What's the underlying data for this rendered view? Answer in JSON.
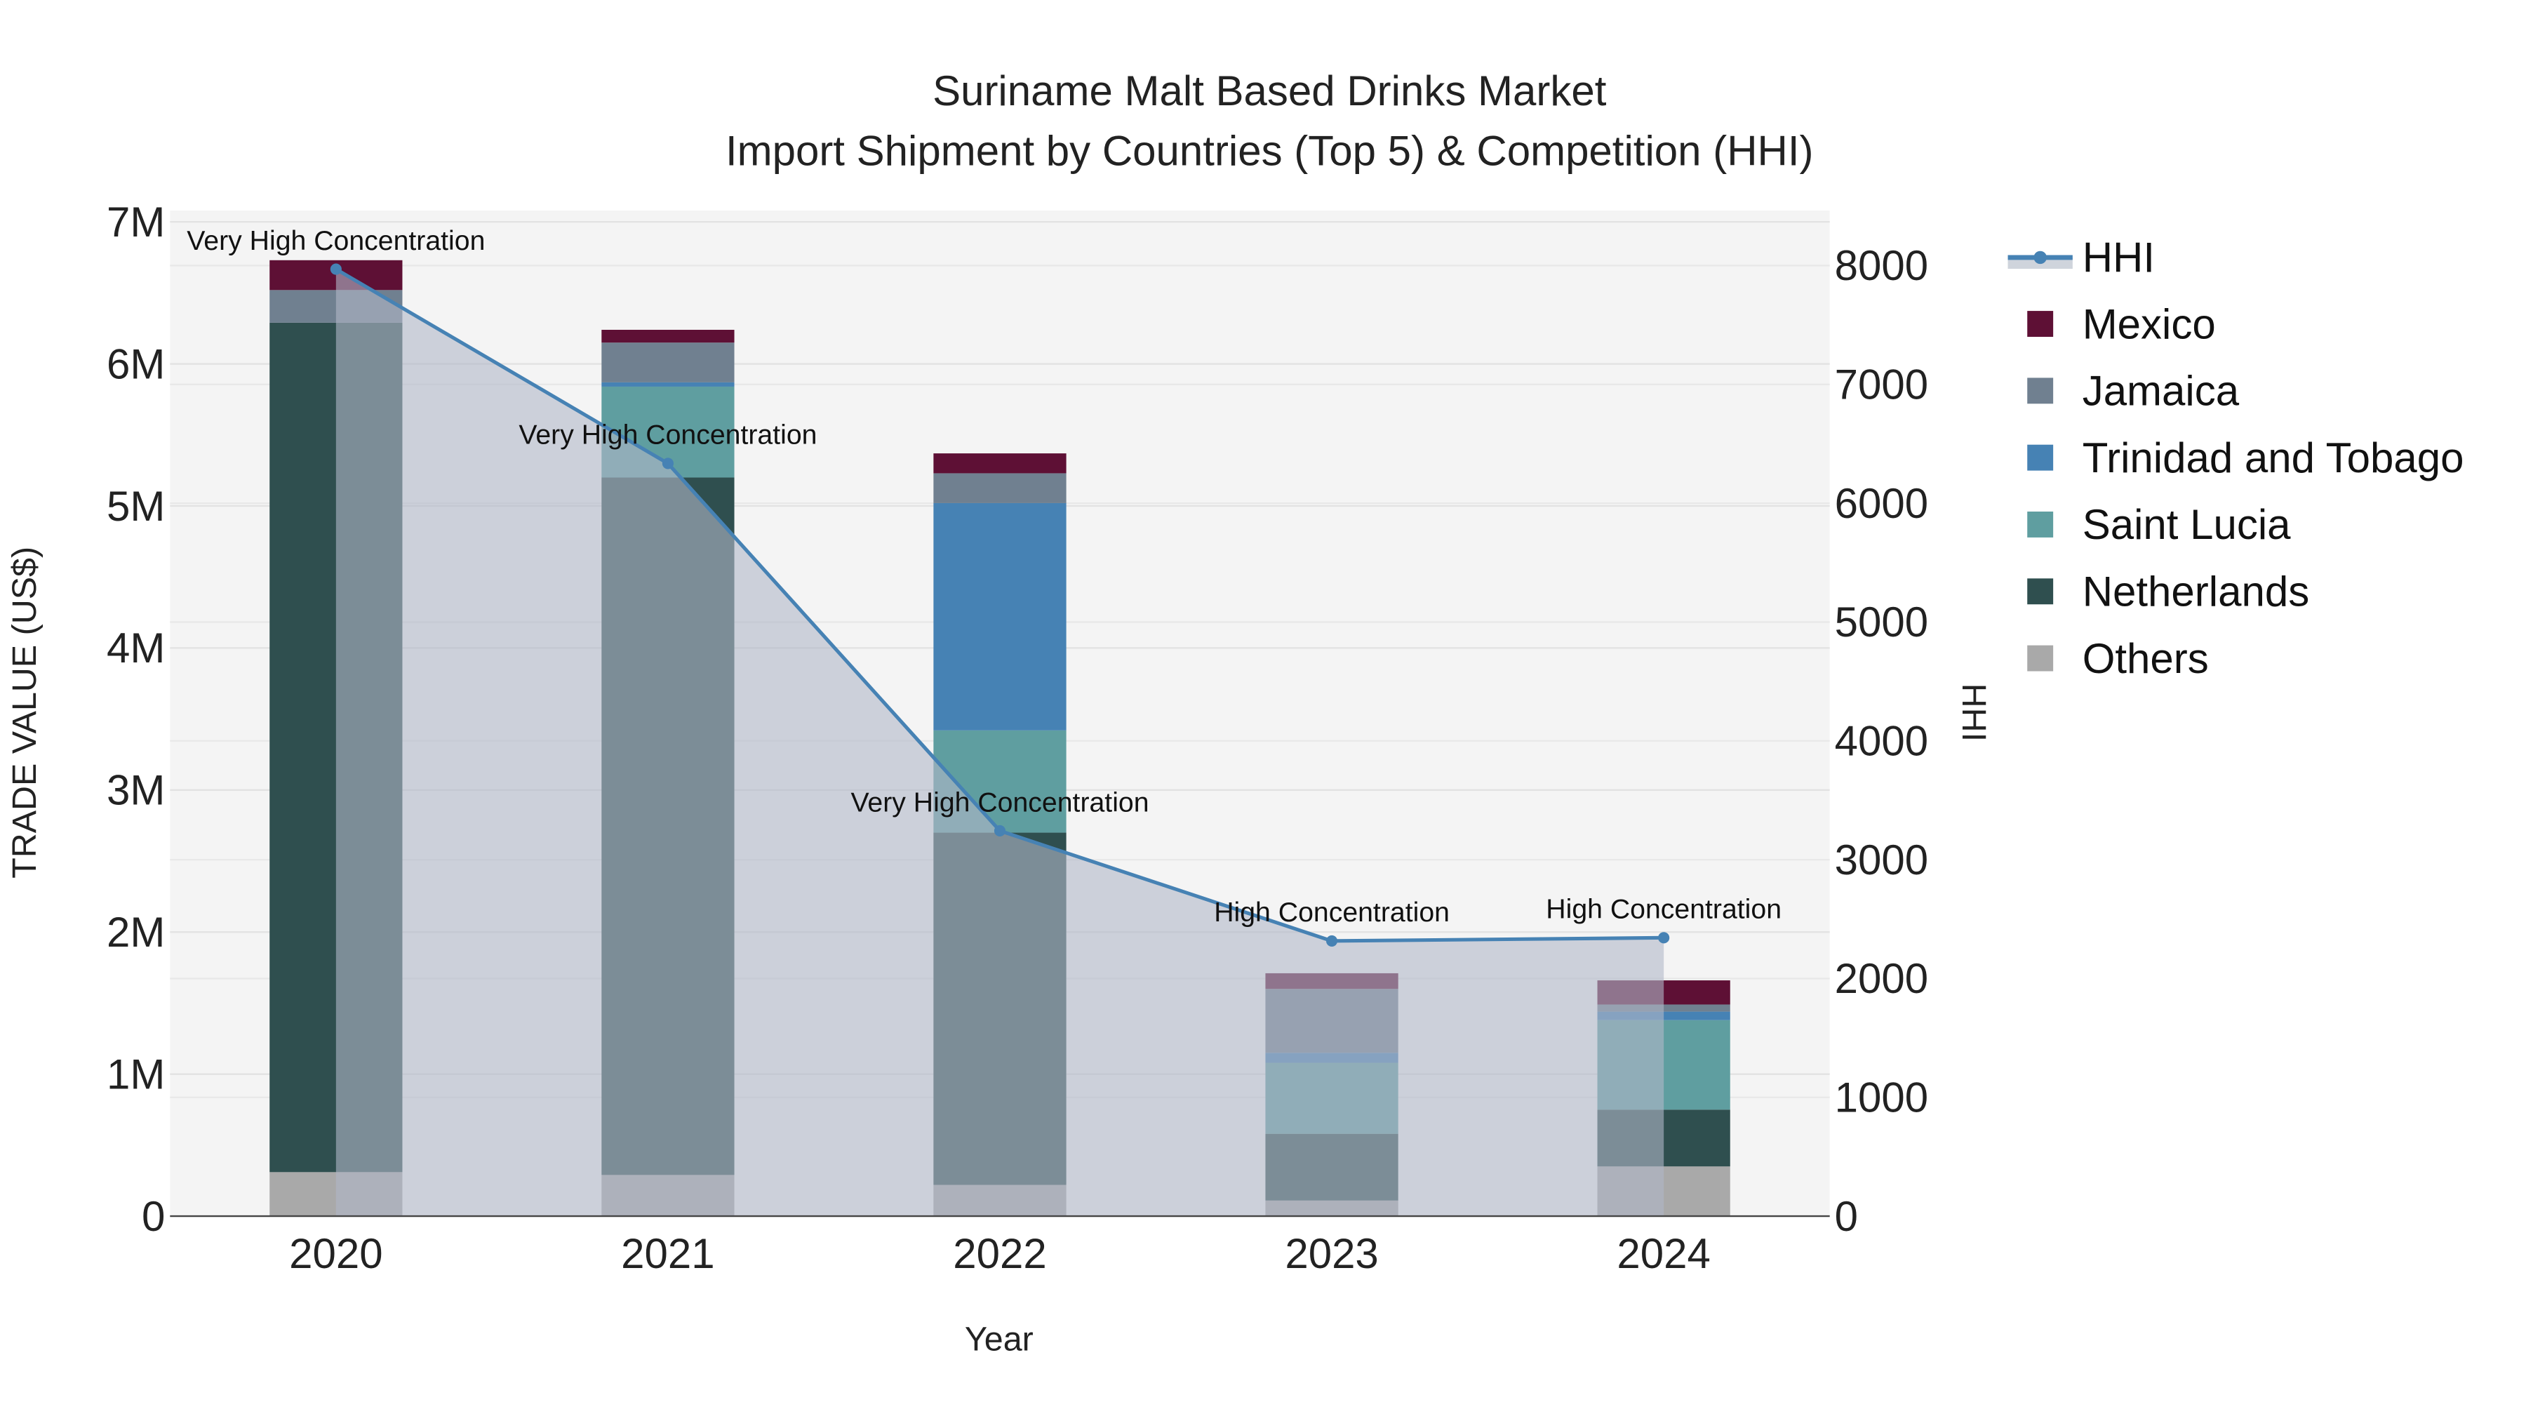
{
  "chart_data": {
    "type": "bar",
    "stacked": true,
    "title_line1": "Suriname Malt Based Drinks Market",
    "title_line2": "Import Shipment by Countries (Top 5) & Competition (HHI)",
    "xlabel": "Year",
    "ylabel": "TRADE VALUE (US$)",
    "y2label": "HHI",
    "categories": [
      "2020",
      "2021",
      "2022",
      "2023",
      "2024"
    ],
    "ylim": [
      0,
      7000000
    ],
    "yticks": [
      0,
      1000000,
      2000000,
      3000000,
      4000000,
      5000000,
      6000000,
      7000000
    ],
    "ytick_labels": [
      "0",
      "1M",
      "2M",
      "3M",
      "4M",
      "5M",
      "6M",
      "7M"
    ],
    "y2lim": [
      0,
      8400
    ],
    "y2ticks": [
      0,
      1000,
      2000,
      3000,
      4000,
      5000,
      6000,
      7000,
      8000
    ],
    "y2tick_labels": [
      "0",
      "1000",
      "2000",
      "3000",
      "4000",
      "5000",
      "6000",
      "7000",
      "8000"
    ],
    "series": [
      {
        "name": "Others",
        "color": "#a9a9a9",
        "values": [
          310000,
          290000,
          220000,
          110000,
          350000
        ]
      },
      {
        "name": "Netherlands",
        "color": "#2f4f4f",
        "values": [
          5980000,
          4910000,
          2480000,
          470000,
          400000
        ]
      },
      {
        "name": "Saint Lucia",
        "color": "#5f9ea0",
        "values": [
          0,
          640000,
          720000,
          500000,
          630000
        ]
      },
      {
        "name": "Trinidad and Tobago",
        "color": "#4682b4",
        "values": [
          0,
          30000,
          1600000,
          70000,
          60000
        ]
      },
      {
        "name": "Jamaica",
        "color": "#708090",
        "values": [
          230000,
          280000,
          210000,
          450000,
          50000
        ]
      },
      {
        "name": "Mexico",
        "color": "#5e1035",
        "values": [
          210000,
          90000,
          140000,
          110000,
          170000
        ]
      }
    ],
    "hhi": {
      "name": "HHI",
      "color": "#4682b4",
      "values": [
        7970,
        6335,
        3243,
        2316,
        2343
      ],
      "annotations": [
        "Very High Concentration",
        "Very High Concentration",
        "Very High Concentration",
        "High Concentration",
        "High Concentration"
      ]
    },
    "legend": [
      "HHI",
      "Mexico",
      "Jamaica",
      "Trinidad and Tobago",
      "Saint Lucia",
      "Netherlands",
      "Others"
    ],
    "legend_position": "right"
  }
}
